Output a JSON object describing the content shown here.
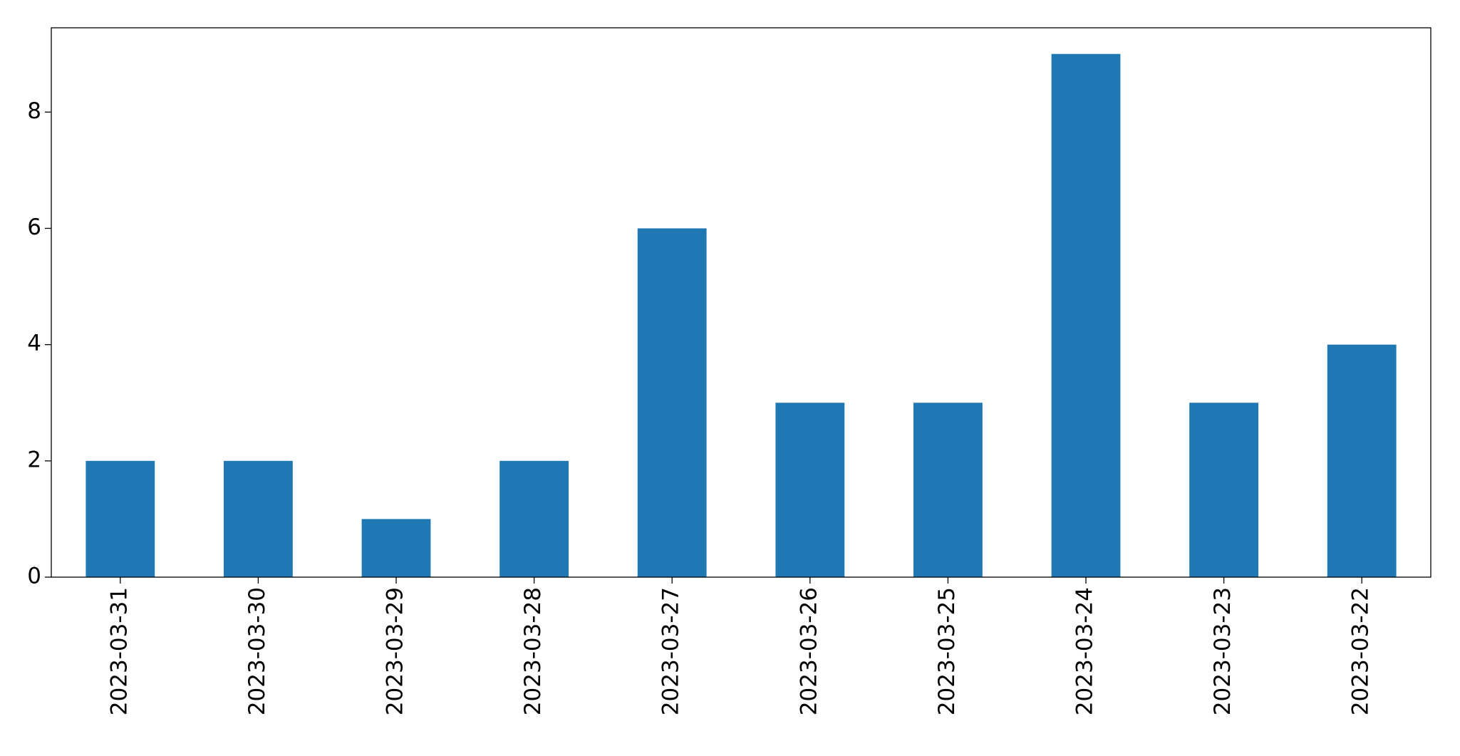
{
  "chart_data": {
    "type": "bar",
    "categories": [
      "2023-03-31",
      "2023-03-30",
      "2023-03-29",
      "2023-03-28",
      "2023-03-27",
      "2023-03-26",
      "2023-03-25",
      "2023-03-24",
      "2023-03-23",
      "2023-03-22"
    ],
    "values": [
      2,
      2,
      1,
      2,
      6,
      3,
      3,
      9,
      3,
      4
    ],
    "color": "#1f77b4",
    "ylim": [
      0,
      9.45
    ],
    "yticks": [
      0,
      2,
      4,
      6,
      8
    ],
    "grid": false
  }
}
